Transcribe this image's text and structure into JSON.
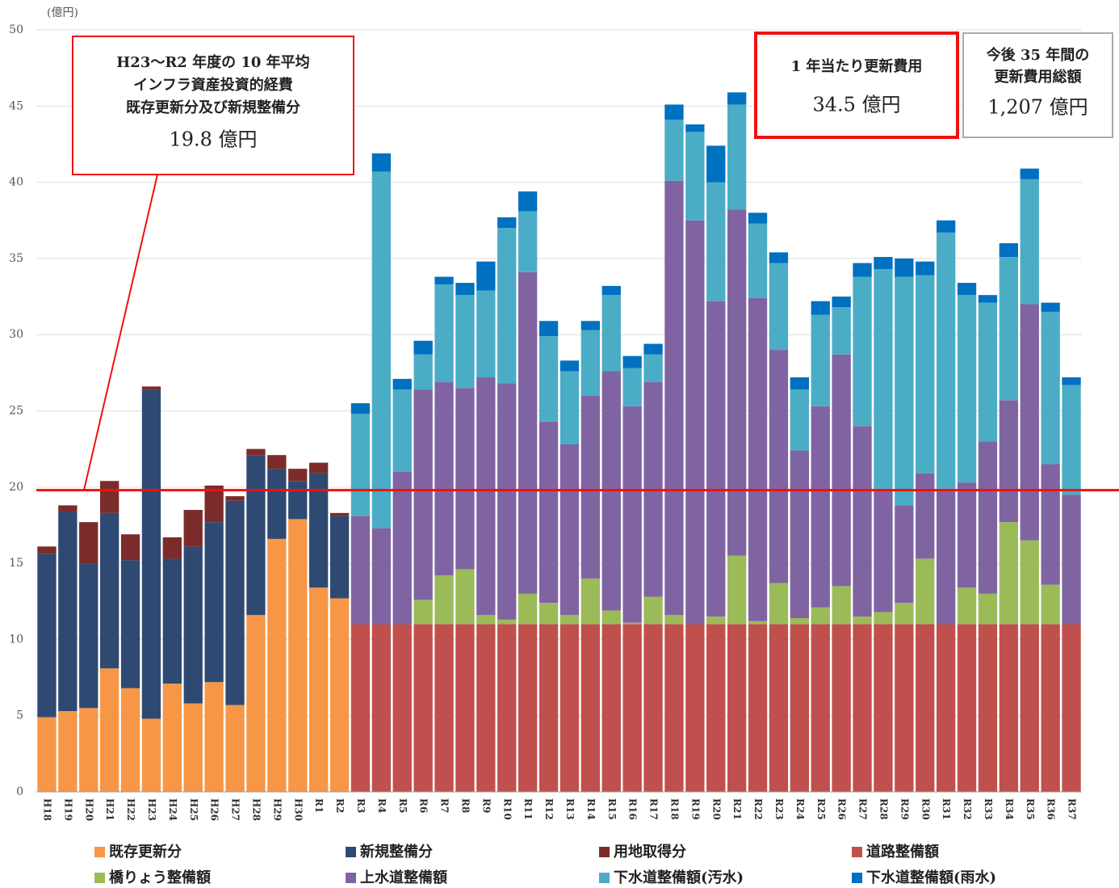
{
  "chart_data": {
    "type": "stacked_bar",
    "unit_label": "(億円)",
    "categories": [
      "H18",
      "H19",
      "H20",
      "H21",
      "H22",
      "H23",
      "H24",
      "H25",
      "H26",
      "H27",
      "H28",
      "H29",
      "H30",
      "R1",
      "R2",
      "R3",
      "R4",
      "R5",
      "R6",
      "R7",
      "R8",
      "R9",
      "R10",
      "R11",
      "R12",
      "R13",
      "R14",
      "R15",
      "R16",
      "R17",
      "R18",
      "R19",
      "R20",
      "R21",
      "R22",
      "R23",
      "R24",
      "R25",
      "R26",
      "R27",
      "R28",
      "R29",
      "R30",
      "R31",
      "R32",
      "R33",
      "R34",
      "R35",
      "R36",
      "R37"
    ],
    "ylim": [
      0,
      50
    ],
    "yticks": [
      0,
      5,
      10,
      15,
      20,
      25,
      30,
      35,
      40,
      45,
      50
    ],
    "grid": true,
    "average_line": {
      "value": 19.8,
      "color": "#ee1111"
    },
    "series": [
      {
        "name": "既存更新分",
        "color": "#f79646",
        "values": [
          4.9,
          5.3,
          5.5,
          8.1,
          6.8,
          4.8,
          7.1,
          5.8,
          7.2,
          5.7,
          11.6,
          16.6,
          17.9,
          13.4,
          12.7,
          null,
          null,
          null,
          null,
          null,
          null,
          null,
          null,
          null,
          null,
          null,
          null,
          null,
          null,
          null,
          null,
          null,
          null,
          null,
          null,
          null,
          null,
          null,
          null,
          null,
          null,
          null,
          null,
          null,
          null,
          null,
          null,
          null,
          null,
          null
        ]
      },
      {
        "name": "新規整備分",
        "color": "#2e4a72",
        "values": [
          10.7,
          13.1,
          9.5,
          10.2,
          8.4,
          21.6,
          8.2,
          10.3,
          10.5,
          13.4,
          10.5,
          4.6,
          2.5,
          7.5,
          5.4,
          null,
          null,
          null,
          null,
          null,
          null,
          null,
          null,
          null,
          null,
          null,
          null,
          null,
          null,
          null,
          null,
          null,
          null,
          null,
          null,
          null,
          null,
          null,
          null,
          null,
          null,
          null,
          null,
          null,
          null,
          null,
          null,
          null,
          null,
          null
        ]
      },
      {
        "name": "用地取得分",
        "color": "#7b2c2a",
        "values": [
          0.5,
          0.4,
          2.7,
          2.1,
          1.7,
          0.2,
          1.4,
          2.4,
          2.4,
          0.3,
          0.4,
          0.9,
          0.8,
          0.7,
          0.2,
          null,
          null,
          null,
          null,
          null,
          null,
          null,
          null,
          null,
          null,
          null,
          null,
          null,
          null,
          null,
          null,
          null,
          null,
          null,
          null,
          null,
          null,
          null,
          null,
          null,
          null,
          null,
          null,
          null,
          null,
          null,
          null,
          null,
          null,
          null
        ]
      },
      {
        "name": "道路整備額",
        "color": "#c0504d",
        "values": [
          null,
          null,
          null,
          null,
          null,
          null,
          null,
          null,
          null,
          null,
          null,
          null,
          null,
          null,
          null,
          11.0,
          11.0,
          11.0,
          11.0,
          11.0,
          11.0,
          11.0,
          11.0,
          11.0,
          11.0,
          11.0,
          11.0,
          11.0,
          11.0,
          11.0,
          11.0,
          11.0,
          11.0,
          11.0,
          11.0,
          11.0,
          11.0,
          11.0,
          11.0,
          11.0,
          11.0,
          11.0,
          11.0,
          11.0,
          11.0,
          11.0,
          11.0,
          11.0,
          11.0,
          11.0
        ]
      },
      {
        "name": "橋りょう整備額",
        "color": "#9bbb59",
        "values": [
          null,
          null,
          null,
          null,
          null,
          null,
          null,
          null,
          null,
          null,
          null,
          null,
          null,
          null,
          null,
          0,
          0,
          0,
          1.6,
          3.2,
          3.6,
          0.6,
          0.3,
          2.0,
          1.4,
          0.6,
          3.0,
          0.9,
          0.1,
          1.8,
          0.6,
          0,
          0.5,
          4.5,
          0.2,
          2.7,
          0.4,
          1.1,
          2.5,
          0.5,
          0.8,
          1.4,
          4.3,
          0,
          2.4,
          2.0,
          6.7,
          5.5,
          2.6,
          0
        ]
      },
      {
        "name": "上水道整備額",
        "color": "#8064a2",
        "values": [
          null,
          null,
          null,
          null,
          null,
          null,
          null,
          null,
          null,
          null,
          null,
          null,
          null,
          null,
          null,
          7.1,
          6.3,
          10.0,
          13.8,
          12.7,
          11.9,
          15.6,
          15.5,
          21.1,
          11.9,
          11.2,
          12.0,
          15.7,
          14.2,
          14.1,
          28.5,
          26.5,
          20.7,
          22.7,
          21.2,
          15.3,
          11.0,
          13.2,
          15.2,
          12.5,
          8.1,
          6.4,
          5.6,
          8.9,
          6.9,
          10.0,
          8.0,
          15.5,
          7.9,
          8.5
        ]
      },
      {
        "name": "下水道整備額(汚水)",
        "color": "#4bacc6",
        "values": [
          null,
          null,
          null,
          null,
          null,
          null,
          null,
          null,
          null,
          null,
          null,
          null,
          null,
          null,
          null,
          6.7,
          23.4,
          5.4,
          2.3,
          6.4,
          6.1,
          5.7,
          10.2,
          4.0,
          5.6,
          4.8,
          4.3,
          5.0,
          2.5,
          1.8,
          4.0,
          5.8,
          7.8,
          6.9,
          4.9,
          5.7,
          4.0,
          6.0,
          3.1,
          9.8,
          14.4,
          15.0,
          13.0,
          16.8,
          12.3,
          9.1,
          9.4,
          8.2,
          10.0,
          7.2
        ]
      },
      {
        "name": "下水道整備額(雨水)",
        "color": "#0070c0",
        "values": [
          null,
          null,
          null,
          null,
          null,
          null,
          null,
          null,
          null,
          null,
          null,
          null,
          null,
          null,
          null,
          0.7,
          1.2,
          0.7,
          0.9,
          0.5,
          0.8,
          1.9,
          0.7,
          1.3,
          1.0,
          0.7,
          0.6,
          0.6,
          0.8,
          0.7,
          1.0,
          0.5,
          2.4,
          0.8,
          0.7,
          0.7,
          0.8,
          0.9,
          0.7,
          0.9,
          0.8,
          1.2,
          0.9,
          0.8,
          0.8,
          0.5,
          0.9,
          0.7,
          0.6,
          0.5
        ]
      }
    ],
    "annotations": [
      {
        "lines": [
          "H23〜R2 年度の 10 年平均",
          "インフラ資産投資的経費",
          "既存更新分及び新規整備分",
          "19.8 億円"
        ],
        "border": "#ee1111"
      },
      {
        "lines": [
          "1 年当たり更新費用",
          "34.5 億円"
        ],
        "border": "#ee1111"
      },
      {
        "lines": [
          "今後 35 年間の",
          "更新費用総額",
          "1,207 億円"
        ],
        "border": "#aaaaaa"
      }
    ]
  }
}
